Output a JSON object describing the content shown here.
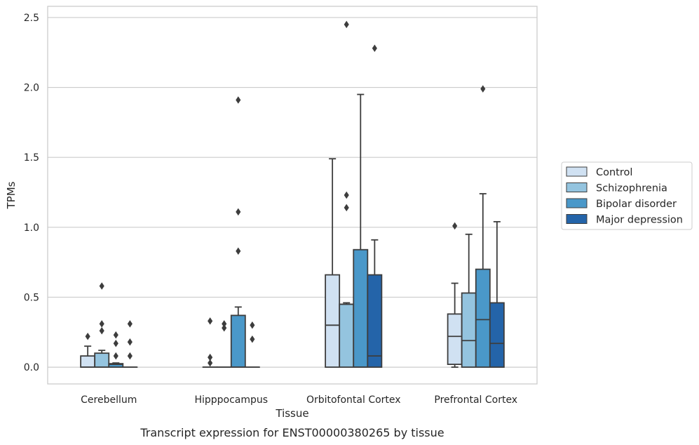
{
  "chart_data": {
    "type": "box",
    "xlabel": "Tissue",
    "ylabel": "TPMs",
    "caption": "Transcript expression for ENST00000380265 by tissue",
    "ylim": [
      -0.12,
      2.58
    ],
    "yticks": [
      0.0,
      0.5,
      1.0,
      1.5,
      2.0,
      2.5
    ],
    "ytick_labels": [
      "0.0",
      "0.5",
      "1.0",
      "1.5",
      "2.0",
      "2.5"
    ],
    "grid": true,
    "legend_position": "right",
    "categories": [
      "Cerebellum",
      "Hipppocampus",
      "Orbitofontal Cortex",
      "Prefrontal Cortex"
    ],
    "series": [
      {
        "name": "Control",
        "color": "#d0e1f2",
        "boxes": [
          {
            "q1": 0.0,
            "median": 0.0,
            "q3": 0.08,
            "whisker_low": 0.0,
            "whisker_high": 0.15,
            "outliers": [
              0.22
            ]
          },
          {
            "q1": 0.0,
            "median": 0.0,
            "q3": 0.0,
            "whisker_low": 0.0,
            "whisker_high": 0.0,
            "outliers": [
              0.03,
              0.07,
              0.33
            ]
          },
          {
            "q1": 0.0,
            "median": 0.3,
            "q3": 0.66,
            "whisker_low": 0.0,
            "whisker_high": 1.49,
            "outliers": []
          },
          {
            "q1": 0.02,
            "median": 0.22,
            "q3": 0.38,
            "whisker_low": 0.0,
            "whisker_high": 0.6,
            "outliers": [
              1.01
            ]
          }
        ]
      },
      {
        "name": "Schizophrenia",
        "color": "#94c4df",
        "boxes": [
          {
            "q1": 0.0,
            "median": 0.0,
            "q3": 0.1,
            "whisker_low": 0.0,
            "whisker_high": 0.12,
            "outliers": [
              0.26,
              0.31,
              0.58
            ]
          },
          {
            "q1": 0.0,
            "median": 0.0,
            "q3": 0.0,
            "whisker_low": 0.0,
            "whisker_high": 0.0,
            "outliers": [
              0.28,
              0.31
            ]
          },
          {
            "q1": 0.0,
            "median": 0.45,
            "q3": 0.45,
            "whisker_low": 0.0,
            "whisker_high": 0.46,
            "outliers": [
              1.14,
              1.23,
              2.45
            ]
          },
          {
            "q1": 0.0,
            "median": 0.19,
            "q3": 0.53,
            "whisker_low": 0.0,
            "whisker_high": 0.95,
            "outliers": []
          }
        ]
      },
      {
        "name": "Bipolar disorder",
        "color": "#4a98c9",
        "boxes": [
          {
            "q1": 0.0,
            "median": 0.02,
            "q3": 0.025,
            "whisker_low": 0.0,
            "whisker_high": 0.03,
            "outliers": [
              0.08,
              0.17,
              0.23
            ]
          },
          {
            "q1": 0.0,
            "median": 0.0,
            "q3": 0.37,
            "whisker_low": 0.0,
            "whisker_high": 0.43,
            "outliers": [
              0.83,
              1.11,
              1.91
            ]
          },
          {
            "q1": 0.0,
            "median": 0.0,
            "q3": 0.84,
            "whisker_low": 0.0,
            "whisker_high": 1.95,
            "outliers": []
          },
          {
            "q1": 0.0,
            "median": 0.34,
            "q3": 0.7,
            "whisker_low": 0.0,
            "whisker_high": 1.24,
            "outliers": [
              1.99
            ]
          }
        ]
      },
      {
        "name": "Major depression",
        "color": "#2464a9",
        "boxes": [
          {
            "q1": 0.0,
            "median": 0.0,
            "q3": 0.0,
            "whisker_low": 0.0,
            "whisker_high": 0.0,
            "outliers": [
              0.08,
              0.18,
              0.31
            ]
          },
          {
            "q1": 0.0,
            "median": 0.0,
            "q3": 0.0,
            "whisker_low": 0.0,
            "whisker_high": 0.0,
            "outliers": [
              0.2,
              0.3
            ]
          },
          {
            "q1": 0.0,
            "median": 0.08,
            "q3": 0.66,
            "whisker_low": 0.0,
            "whisker_high": 0.91,
            "outliers": [
              2.28
            ]
          },
          {
            "q1": 0.0,
            "median": 0.17,
            "q3": 0.46,
            "whisker_low": 0.0,
            "whisker_high": 1.04,
            "outliers": []
          }
        ]
      }
    ]
  }
}
